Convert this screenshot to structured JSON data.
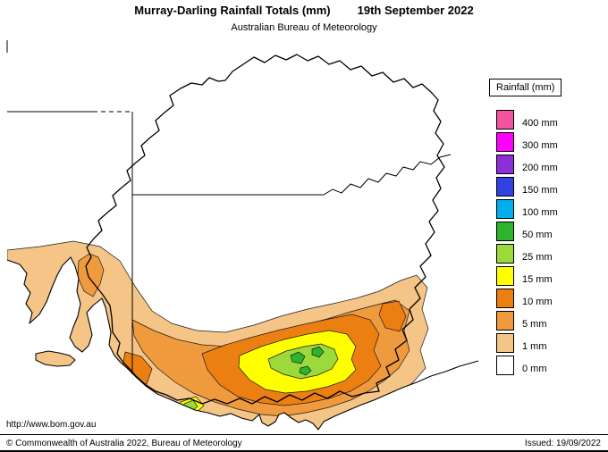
{
  "header": {
    "title": "Murray-Darling Rainfall Totals (mm)",
    "date": "19th September 2022",
    "subtitle": "Australian Bureau of Meteorology"
  },
  "legend": {
    "title": "Rainfall (mm)",
    "items": [
      {
        "label": "400 mm",
        "color": "#F4549F"
      },
      {
        "label": "300 mm",
        "color": "#FE00FE"
      },
      {
        "label": "200 mm",
        "color": "#8D2FD9"
      },
      {
        "label": "150 mm",
        "color": "#3142E0"
      },
      {
        "label": "100 mm",
        "color": "#00AEEF"
      },
      {
        "label": "50 mm",
        "color": "#2DB32D"
      },
      {
        "label": "25 mm",
        "color": "#9CD93B"
      },
      {
        "label": "15 mm",
        "color": "#FFFF00"
      },
      {
        "label": "10 mm",
        "color": "#EC7F12"
      },
      {
        "label": "5 mm",
        "color": "#F09A3E"
      },
      {
        "label": "1 mm",
        "color": "#F5C487"
      },
      {
        "label": "0 mm",
        "color": "#FFFFFF"
      }
    ]
  },
  "map": {
    "outline_color": "#000000",
    "sea_color": "#FFFFFF",
    "no_rain_color": "#FFFFFF"
  },
  "footer": {
    "url": "http://www.bom.gov.au",
    "copyright": "© Commonwealth of Australia 2022, Bureau of Meteorology",
    "issued": "Issued: 19/09/2022"
  }
}
